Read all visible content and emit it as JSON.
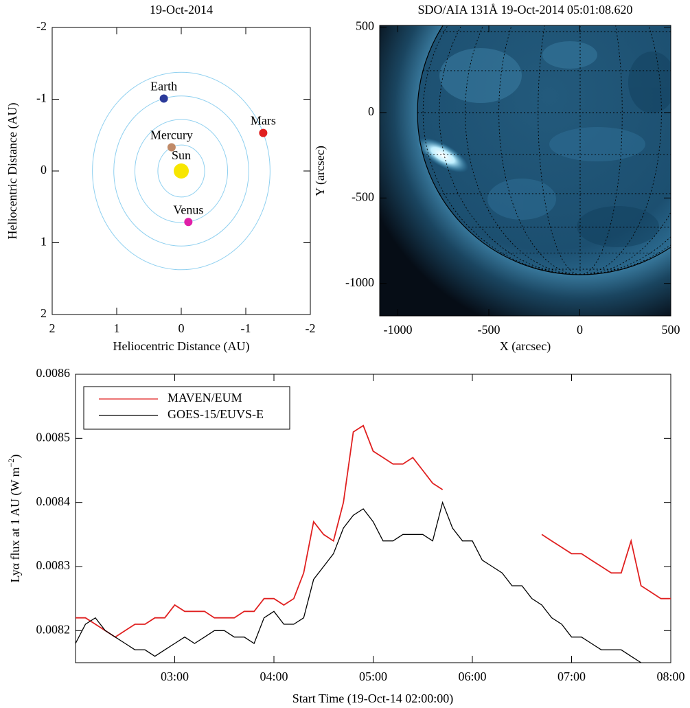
{
  "chart_data": [
    {
      "type": "scatter",
      "title": "19-Oct-2014",
      "xlabel": "Heliocentric Distance (AU)",
      "ylabel": "Heliocentric Distance (AU)",
      "xlim": [
        2,
        -2
      ],
      "ylim": [
        2,
        -2
      ],
      "xticks": [
        2,
        1,
        0,
        -1,
        -2
      ],
      "yticks": [
        -2,
        -1,
        0,
        1,
        2
      ],
      "orbit_color": "#8fd0f0",
      "points": [
        {
          "name": "Sun",
          "x": 0,
          "y": 0,
          "color": "#f7e600"
        },
        {
          "name": "Mercury",
          "x": 0.15,
          "y": -0.33,
          "color": "#c08a68"
        },
        {
          "name": "Venus",
          "x": -0.11,
          "y": 0.71,
          "color": "#e020a8"
        },
        {
          "name": "Earth",
          "x": 0.27,
          "y": -1.01,
          "color": "#2b3a9a"
        },
        {
          "name": "Mars",
          "x": -1.27,
          "y": -0.53,
          "color": "#e02020"
        }
      ]
    },
    {
      "type": "image",
      "title": "SDO/AIA 131Å 19-Oct-2014 05:01:08.620",
      "xlabel": "X (arcsec)",
      "ylabel": "Y (arcsec)",
      "xlim": [
        -1100,
        500
      ],
      "ylim": [
        -1190,
        510
      ],
      "xticks": [
        -1000,
        -500,
        0,
        500
      ],
      "yticks": [
        -1000,
        -500,
        0,
        500
      ]
    },
    {
      "type": "line",
      "xlabel": "Start Time (19-Oct-14 02:00:00)",
      "ylabel": [
        "Lyα flux at 1 AU (W m",
        "−2",
        ")"
      ],
      "xlim": [
        2,
        8
      ],
      "ylim": [
        0.00815,
        0.0086
      ],
      "xticks": [
        {
          "value": 3,
          "label": "03:00"
        },
        {
          "value": 4,
          "label": "04:00"
        },
        {
          "value": 5,
          "label": "05:00"
        },
        {
          "value": 6,
          "label": "06:00"
        },
        {
          "value": 7,
          "label": "07:00"
        },
        {
          "value": 8,
          "label": "08:00"
        }
      ],
      "yticks": [
        0.0082,
        0.0083,
        0.0084,
        0.0085,
        0.0086
      ],
      "legend": "upper left",
      "x": [
        2.0,
        2.1,
        2.2,
        2.3,
        2.4,
        2.5,
        2.6,
        2.7,
        2.8,
        2.9,
        3.0,
        3.1,
        3.2,
        3.3,
        3.4,
        3.5,
        3.6,
        3.7,
        3.8,
        3.9,
        4.0,
        4.1,
        4.2,
        4.3,
        4.4,
        4.5,
        4.6,
        4.7,
        4.8,
        4.9,
        5.0,
        5.1,
        5.2,
        5.3,
        5.4,
        5.5,
        5.6,
        5.7,
        5.8,
        5.9,
        6.0,
        6.1,
        6.2,
        6.3,
        6.4,
        6.5,
        6.6,
        6.7,
        6.8,
        6.9,
        7.0,
        7.1,
        7.2,
        7.3,
        7.4,
        7.5,
        7.6,
        7.7,
        7.8,
        7.9,
        8.0
      ],
      "series": [
        {
          "name": "MAVEN/EUM",
          "color": "#e02020",
          "values": [
            0.00822,
            0.00822,
            0.00821,
            0.0082,
            0.00819,
            0.0082,
            0.00821,
            0.00821,
            0.00822,
            0.00822,
            0.00824,
            0.00823,
            0.00823,
            0.00823,
            0.00822,
            0.00822,
            0.00822,
            0.00823,
            0.00823,
            0.00825,
            0.00825,
            0.00824,
            0.00825,
            0.00829,
            0.00837,
            0.00835,
            0.00834,
            0.0084,
            0.00851,
            0.00852,
            0.00848,
            0.00847,
            0.00846,
            0.00846,
            0.00847,
            0.00845,
            0.00843,
            0.00842,
            null,
            null,
            null,
            null,
            null,
            null,
            null,
            null,
            null,
            0.00835,
            0.00834,
            0.00833,
            0.00832,
            0.00832,
            0.00831,
            0.0083,
            0.00829,
            0.00829,
            0.00834,
            0.00827,
            0.00826,
            0.00825,
            0.00825
          ]
        },
        {
          "name": "GOES-15/EUVS-E",
          "color": "#000000",
          "values": [
            0.00818,
            0.00821,
            0.00822,
            0.0082,
            0.00819,
            0.00818,
            0.00817,
            0.00817,
            0.00816,
            0.00817,
            0.00818,
            0.00819,
            0.00818,
            0.00819,
            0.0082,
            0.0082,
            0.00819,
            0.00819,
            0.00818,
            0.00822,
            0.00823,
            0.00821,
            0.00821,
            0.00822,
            0.00828,
            0.0083,
            0.00832,
            0.00836,
            0.00838,
            0.00839,
            0.00837,
            0.00834,
            0.00834,
            0.00835,
            0.00835,
            0.00835,
            0.00834,
            0.0084,
            0.00836,
            0.00834,
            0.00834,
            0.00831,
            0.0083,
            0.00829,
            0.00827,
            0.00827,
            0.00825,
            0.00824,
            0.00822,
            0.00821,
            0.00819,
            0.00819,
            0.00818,
            0.00817,
            0.00817,
            0.00817,
            0.00816,
            0.00815,
            null,
            null,
            null
          ]
        }
      ]
    }
  ]
}
